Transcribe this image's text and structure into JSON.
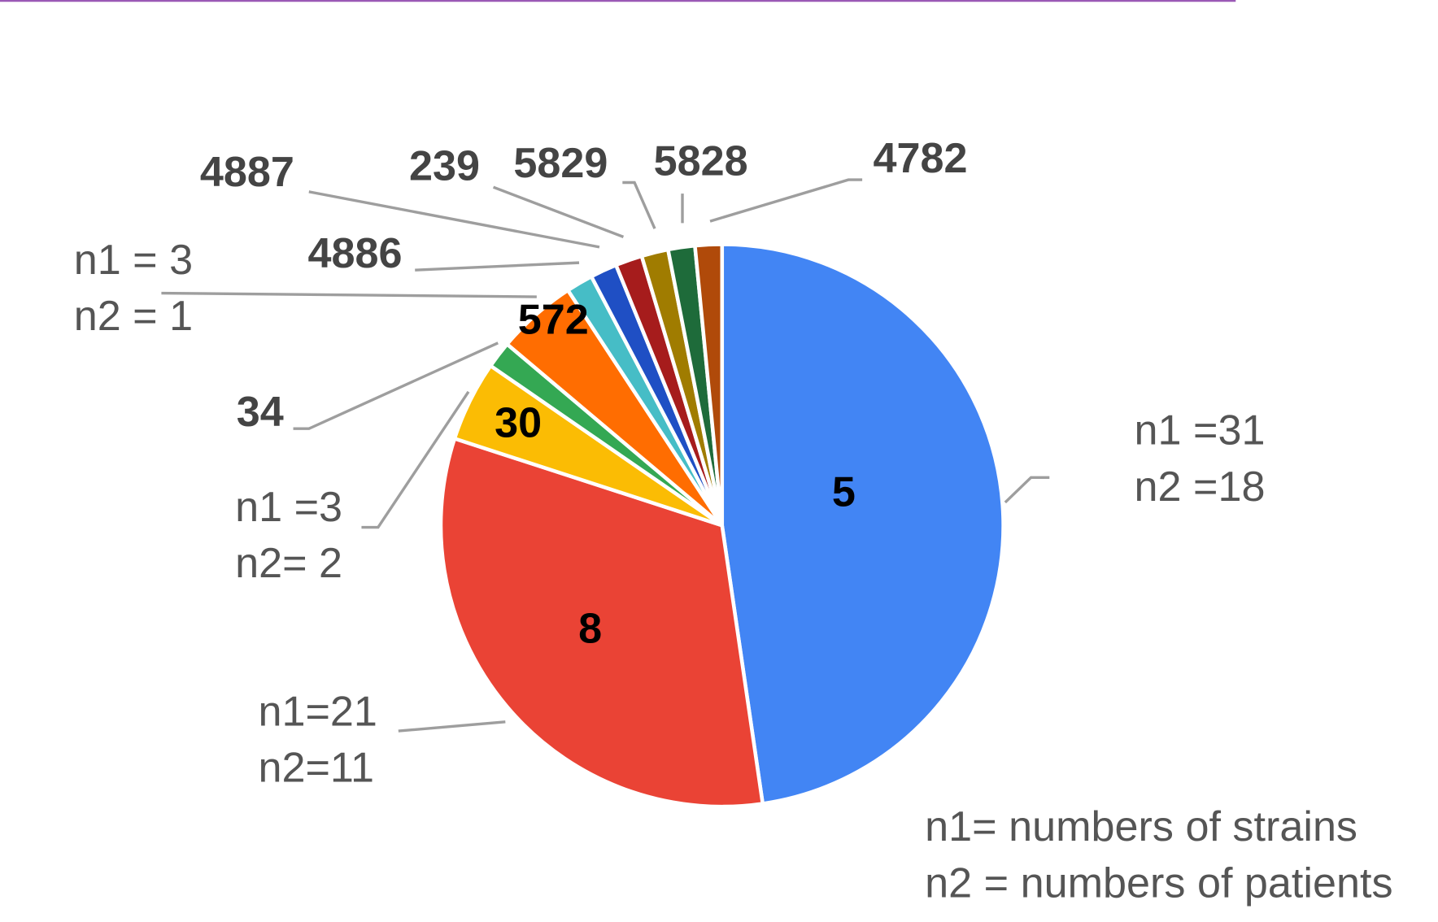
{
  "chart_data": {
    "type": "pie",
    "categories": [
      "5",
      "8",
      "30",
      "34",
      "572",
      "4886",
      "4887",
      "239",
      "5829",
      "5828",
      "4782"
    ],
    "values": [
      31,
      21,
      3,
      1,
      3,
      1,
      1,
      1,
      1,
      1,
      1
    ],
    "colors": [
      "#4285f4",
      "#ea4335",
      "#fbbc04",
      "#34a853",
      "#ff6d01",
      "#46bdc6",
      "#1f4fc4",
      "#a61c1c",
      "#a07c00",
      "#1e6b3a",
      "#b04a0a"
    ],
    "annotations": [
      [
        "n1 =31",
        "n2 =18"
      ],
      [
        "n1=21",
        "n2=11"
      ],
      [
        "n1 =3",
        "n2= 2"
      ],
      [
        "n1 = 3",
        "n2 = 1"
      ],
      [
        "n1= numbers  of strains",
        "n2 = numbers  of patients"
      ]
    ]
  }
}
